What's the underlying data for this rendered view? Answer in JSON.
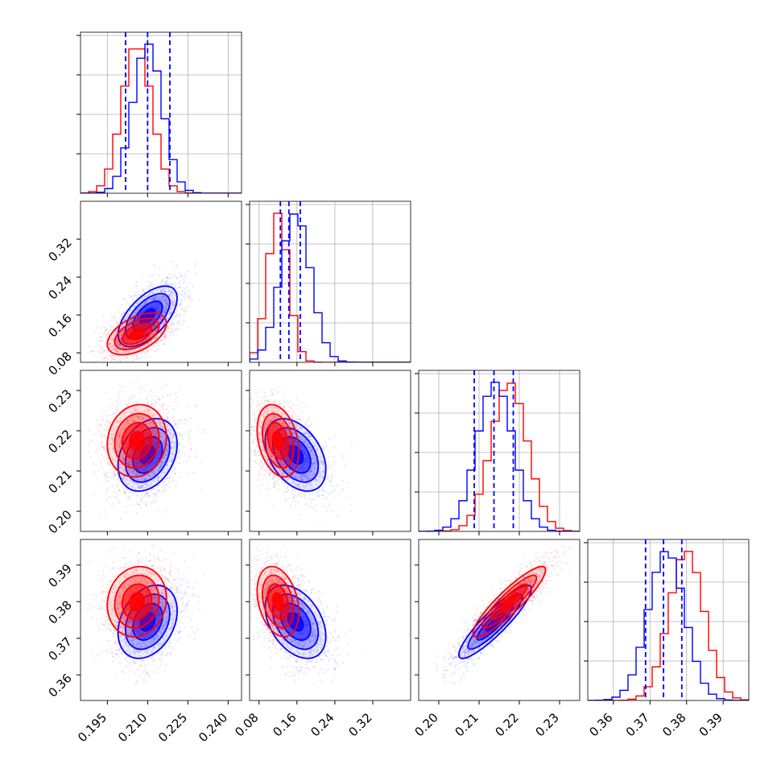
{
  "chart_data": {
    "type": "corner",
    "parameters": [
      {
        "ticks": [
          "0.195",
          "0.210",
          "0.225",
          "0.240"
        ],
        "tick_values": [
          0.195,
          0.21,
          0.225,
          0.24
        ],
        "range": [
          0.185,
          0.245
        ]
      },
      {
        "ticks": [
          "0.08",
          "0.16",
          "0.24",
          "0.32"
        ],
        "tick_values": [
          0.08,
          0.16,
          0.24,
          0.32
        ],
        "range": [
          0.06,
          0.4
        ]
      },
      {
        "ticks": [
          "0.20",
          "0.21",
          "0.22",
          "0.23"
        ],
        "tick_values": [
          0.2,
          0.21,
          0.22,
          0.23
        ],
        "range": [
          0.195,
          0.235
        ]
      },
      {
        "ticks": [
          "0.36",
          "0.37",
          "0.38",
          "0.39"
        ],
        "tick_values": [
          0.36,
          0.37,
          0.38,
          0.39
        ],
        "range": [
          0.353,
          0.397
        ]
      }
    ],
    "series": [
      {
        "color": "#ff0000",
        "mean": [
          0.206,
          0.12,
          0.2175,
          0.38
        ],
        "std": [
          0.0055,
          0.022,
          0.0045,
          0.0048
        ],
        "correlation": [
          [
            1,
            0.5,
            0.1,
            0.1
          ],
          [
            0.5,
            1,
            -0.3,
            -0.3
          ],
          [
            0.1,
            -0.3,
            1,
            0.9
          ],
          [
            0.1,
            -0.3,
            0.9,
            1
          ]
        ]
      },
      {
        "color": "#0000ff",
        "mean": [
          0.21,
          0.157,
          0.214,
          0.3745
        ],
        "std": [
          0.0055,
          0.032,
          0.0045,
          0.005
        ],
        "correlation": [
          [
            1,
            0.6,
            0.3,
            0.3
          ],
          [
            0.6,
            1,
            -0.4,
            -0.4
          ],
          [
            0.3,
            -0.4,
            1,
            0.9
          ],
          [
            0.3,
            -0.4,
            0.9,
            1
          ]
        ],
        "quantiles": [
          [
            0.2018,
            0.21,
            0.2183
          ],
          [
            0.125,
            0.143,
            0.167
          ],
          [
            0.2088,
            0.2137,
            0.2185
          ],
          [
            0.3688,
            0.3737,
            0.3787
          ]
        ]
      }
    ],
    "diag_bins": 20,
    "contour_levels": [
      0.5,
      1.0,
      1.5,
      2.0
    ],
    "grid": true,
    "title": "",
    "legend": ""
  }
}
